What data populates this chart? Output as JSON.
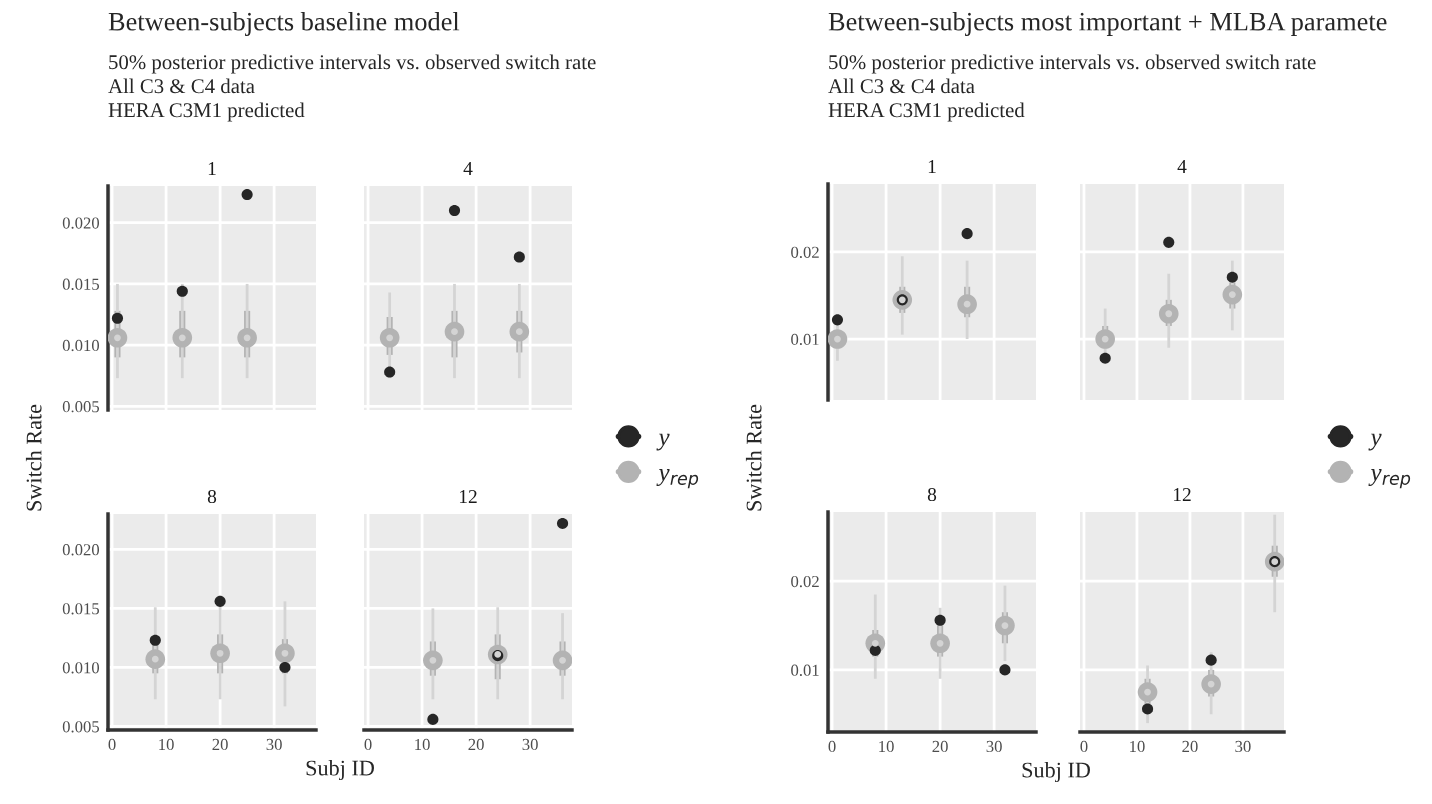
{
  "chart_data": [
    {
      "type": "scatter",
      "title": "1",
      "ylabel": "Switch Rate",
      "annotations": [
        "Between-subjects baseline model",
        "50% posterior predictive intervals vs. observed switch rate",
        "All C3 & C4 data",
        "HERA C3M1 predicted"
      ],
      "xlim": [
        -0.75,
        37.75
      ],
      "xticks": [
        0,
        10,
        20,
        30
      ],
      "ylim": [
        0.0047,
        0.023
      ],
      "yticks": [
        {
          "value": 0.005,
          "label": "0.005"
        },
        {
          "value": 0.01,
          "label": "0.010"
        },
        {
          "value": 0.015,
          "label": "0.015"
        },
        {
          "value": 0.02,
          "label": "0.020"
        }
      ],
      "grid": true,
      "tick_labels": "y",
      "legend": "right",
      "marker": "circle",
      "series": [
        {
          "name": "y$_{rep}$",
          "color": "#b3b3b3",
          "x": [
            1,
            13,
            25
          ],
          "values": [
            0.0106,
            0.0106,
            0.0106
          ],
          "errors": [
            [
              0.009,
              0.0128
            ],
            [
              0.009,
              0.0128
            ],
            [
              0.009,
              0.0128
            ]
          ]
        },
        {
          "color": "#d4d4d4",
          "x": [
            1,
            13,
            25
          ],
          "values": [
            0.0106,
            0.0106,
            0.0106
          ],
          "errors": [
            [
              0.0073,
              0.015
            ],
            [
              0.0073,
              0.015
            ],
            [
              0.0073,
              0.015
            ]
          ]
        },
        {
          "name": "y",
          "color": "#262626",
          "x": [
            1,
            13,
            25
          ],
          "values": [
            0.0122,
            0.0144,
            0.0223
          ]
        }
      ]
    },
    {
      "type": "scatter",
      "title": "4",
      "xlim": [
        -0.75,
        37.75
      ],
      "xticks": [
        0,
        10,
        20,
        30
      ],
      "ylim": [
        0.0047,
        0.023
      ],
      "yticks": [
        0.005,
        0.01,
        0.015,
        0.02
      ],
      "grid": true,
      "tick_labels": false,
      "marker": "circle",
      "series": [
        {
          "color": "#b3b3b3",
          "x": [
            4,
            16,
            28
          ],
          "values": [
            0.0106,
            0.0111,
            0.0111
          ],
          "errors": [
            [
              0.0092,
              0.0123
            ],
            [
              0.009,
              0.0128
            ],
            [
              0.0094,
              0.0128
            ]
          ]
        },
        {
          "color": "#d4d4d4",
          "x": [
            4,
            16,
            28
          ],
          "values": [
            0.0106,
            0.0111,
            0.0111
          ],
          "errors": [
            [
              0.0073,
              0.0143
            ],
            [
              0.0073,
              0.015
            ],
            [
              0.0073,
              0.015
            ]
          ]
        },
        {
          "color": "#262626",
          "x": [
            4,
            16,
            28
          ],
          "values": [
            0.0078,
            0.021,
            0.0172
          ]
        }
      ]
    },
    {
      "type": "scatter",
      "title": "8",
      "xlabel": "Subj ID",
      "xlim": [
        -0.75,
        37.75
      ],
      "xticks": [
        0,
        10,
        20,
        30
      ],
      "ylim": [
        0.0047,
        0.023
      ],
      "yticks": [
        {
          "value": 0.005,
          "label": "0.005"
        },
        {
          "value": 0.01,
          "label": "0.010"
        },
        {
          "value": 0.015,
          "label": "0.015"
        },
        {
          "value": 0.02,
          "label": "0.020"
        }
      ],
      "grid": true,
      "marker": "circle",
      "series": [
        {
          "color": "#b3b3b3",
          "x": [
            8,
            20,
            32
          ],
          "values": [
            0.0107,
            0.0112,
            0.0112
          ],
          "errors": [
            [
              0.0095,
              0.0122
            ],
            [
              0.0095,
              0.0128
            ],
            [
              0.0095,
              0.0124
            ]
          ]
        },
        {
          "color": "#d4d4d4",
          "x": [
            8,
            20,
            32
          ],
          "values": [
            0.0107,
            0.0112,
            0.0112
          ],
          "errors": [
            [
              0.0073,
              0.0151
            ],
            [
              0.0073,
              0.0155
            ],
            [
              0.0067,
              0.0156
            ]
          ]
        },
        {
          "color": "#262626",
          "x": [
            8,
            20,
            32
          ],
          "values": [
            0.0123,
            0.0156,
            0.01
          ]
        }
      ]
    },
    {
      "type": "scatter",
      "title": "12",
      "xlim": [
        -0.75,
        37.75
      ],
      "xticks": [
        0,
        10,
        20,
        30
      ],
      "ylim": [
        0.0047,
        0.023
      ],
      "yticks": [
        0.005,
        0.01,
        0.015,
        0.02
      ],
      "grid": true,
      "tick_labels": "x",
      "marker": "circle",
      "series": [
        {
          "color": "#b3b3b3",
          "x": [
            12,
            24,
            36
          ],
          "values": [
            0.0106,
            0.0111,
            0.0106
          ],
          "errors": [
            [
              0.0093,
              0.0122
            ],
            [
              0.009,
              0.0128
            ],
            [
              0.0093,
              0.0122
            ]
          ]
        },
        {
          "color": "#d4d4d4",
          "x": [
            12,
            24,
            36
          ],
          "values": [
            0.0106,
            0.0111,
            0.0106
          ],
          "errors": [
            [
              0.0073,
              0.015
            ],
            [
              0.0073,
              0.0151
            ],
            [
              0.0073,
              0.0146
            ]
          ]
        },
        {
          "color": "#262626",
          "x": [
            12,
            24,
            36
          ],
          "values": [
            0.0056,
            0.011,
            0.0222
          ]
        }
      ]
    },
    {
      "type": "scatter",
      "title": "1",
      "ylabel": "Switch Rate",
      "annotations": [
        "Between-subjects most important + MLBA paramete",
        "50% posterior predictive intervals vs. observed switch rate",
        "All C3 & C4 data",
        "HERA C3M1 predicted"
      ],
      "xlim": [
        -0.75,
        37.75
      ],
      "xticks": [
        0,
        10,
        20,
        30
      ],
      "ylim": [
        0.003,
        0.0278
      ],
      "yticks": [
        0.01,
        0.02
      ],
      "grid": true,
      "tick_labels": "y",
      "legend": "right",
      "marker": "circle",
      "series": [
        {
          "name": "y$_{rep}$",
          "color": "#b3b3b3",
          "x": [
            1,
            13,
            25
          ],
          "values": [
            0.01,
            0.0145,
            0.014
          ],
          "errors": [
            [
              0.0092,
              0.011
            ],
            [
              0.013,
              0.016
            ],
            [
              0.0125,
              0.016
            ]
          ]
        },
        {
          "color": "#d4d4d4",
          "x": [
            1,
            13,
            25
          ],
          "values": [
            0.01,
            0.0145,
            0.014
          ],
          "errors": [
            [
              0.0075,
              0.0125
            ],
            [
              0.0105,
              0.0195
            ],
            [
              0.01,
              0.019
            ]
          ]
        },
        {
          "name": "y",
          "color": "#262626",
          "x": [
            1,
            13,
            25
          ],
          "values": [
            0.0122,
            0.0145,
            0.0221
          ]
        }
      ]
    },
    {
      "type": "scatter",
      "title": "4",
      "xlim": [
        -0.75,
        37.75
      ],
      "xticks": [
        0,
        10,
        20,
        30
      ],
      "ylim": [
        0.003,
        0.0278
      ],
      "yticks": [
        0.01,
        0.02
      ],
      "grid": true,
      "tick_labels": false,
      "marker": "circle",
      "series": [
        {
          "color": "#b3b3b3",
          "x": [
            4,
            16,
            28
          ],
          "values": [
            0.01,
            0.0129,
            0.0151
          ],
          "errors": [
            [
              0.009,
              0.0115
            ],
            [
              0.0115,
              0.0145
            ],
            [
              0.0135,
              0.0165
            ]
          ]
        },
        {
          "color": "#d4d4d4",
          "x": [
            4,
            16,
            28
          ],
          "values": [
            0.01,
            0.0129,
            0.0151
          ],
          "errors": [
            [
              0.0075,
              0.0135
            ],
            [
              0.009,
              0.0175
            ],
            [
              0.011,
              0.019
            ]
          ]
        },
        {
          "color": "#262626",
          "x": [
            4,
            16,
            28
          ],
          "values": [
            0.0078,
            0.0211,
            0.0171
          ]
        }
      ]
    },
    {
      "type": "scatter",
      "title": "8",
      "xlabel": "Subj ID",
      "xlim": [
        -0.75,
        37.75
      ],
      "xticks": [
        0,
        10,
        20,
        30
      ],
      "ylim": [
        0.003,
        0.0278
      ],
      "yticks": [
        0.01,
        0.02
      ],
      "grid": true,
      "marker": "circle",
      "series": [
        {
          "color": "#b3b3b3",
          "x": [
            8,
            20,
            32
          ],
          "values": [
            0.013,
            0.013,
            0.015
          ],
          "errors": [
            [
              0.0115,
              0.0145
            ],
            [
              0.0115,
              0.015
            ],
            [
              0.013,
              0.0165
            ]
          ]
        },
        {
          "color": "#d4d4d4",
          "x": [
            8,
            20,
            32
          ],
          "values": [
            0.013,
            0.013,
            0.015
          ],
          "errors": [
            [
              0.009,
              0.0185
            ],
            [
              0.009,
              0.017
            ],
            [
              0.011,
              0.0195
            ]
          ]
        },
        {
          "color": "#262626",
          "x": [
            8,
            20,
            32
          ],
          "values": [
            0.0122,
            0.0156,
            0.01
          ]
        }
      ]
    },
    {
      "type": "scatter",
      "title": "12",
      "xlim": [
        -0.75,
        37.75
      ],
      "xticks": [
        0,
        10,
        20,
        30
      ],
      "ylim": [
        0.003,
        0.0278
      ],
      "yticks": [
        0.01,
        0.02
      ],
      "grid": true,
      "tick_labels": "x",
      "marker": "circle",
      "series": [
        {
          "color": "#b3b3b3",
          "x": [
            12,
            24,
            36
          ],
          "values": [
            0.0075,
            0.0084,
            0.0222
          ],
          "errors": [
            [
              0.006,
              0.009
            ],
            [
              0.007,
              0.01
            ],
            [
              0.0205,
              0.024
            ]
          ]
        },
        {
          "color": "#d4d4d4",
          "x": [
            12,
            24,
            36
          ],
          "values": [
            0.0075,
            0.0084,
            0.0222
          ],
          "errors": [
            [
              0.004,
              0.0105
            ],
            [
              0.005,
              0.012
            ],
            [
              0.0165,
              0.0275
            ]
          ]
        },
        {
          "color": "#262626",
          "x": [
            12,
            24,
            36
          ],
          "values": [
            0.0056,
            0.0111,
            0.0222
          ]
        }
      ]
    }
  ]
}
